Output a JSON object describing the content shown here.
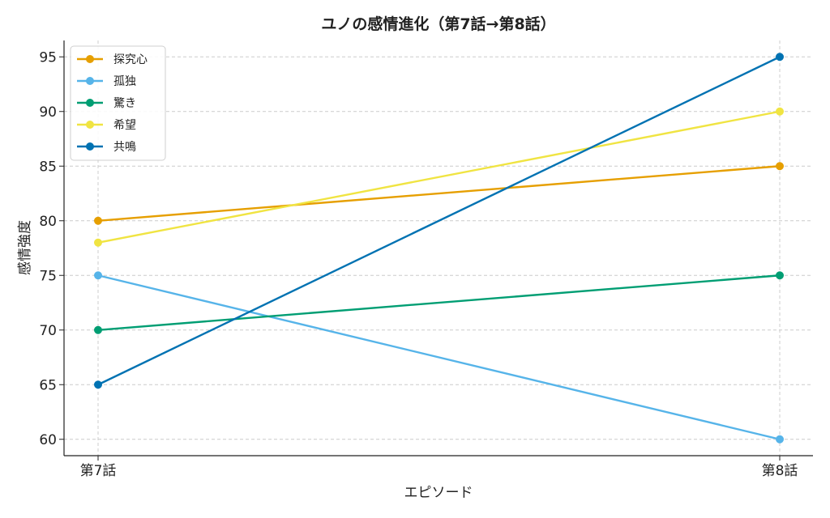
{
  "chart_data": {
    "type": "line",
    "title": "ユノの感情進化（第7話→第8話）",
    "xlabel": "エピソード",
    "ylabel": "感情強度",
    "categories": [
      "第7話",
      "第8話"
    ],
    "ylim": [
      58.5,
      96.5
    ],
    "yticks": [
      60,
      65,
      70,
      75,
      80,
      85,
      90,
      95
    ],
    "grid": true,
    "legend_position": "top-left",
    "series": [
      {
        "name": "探究心",
        "color": "#E69F00",
        "values": [
          80,
          85
        ]
      },
      {
        "name": "孤独",
        "color": "#56B4E9",
        "values": [
          75,
          60
        ]
      },
      {
        "name": "驚き",
        "color": "#009E73",
        "values": [
          70,
          75
        ]
      },
      {
        "name": "希望",
        "color": "#F0E442",
        "values": [
          78,
          90
        ]
      },
      {
        "name": "共鳴",
        "color": "#0072B2",
        "values": [
          65,
          95
        ]
      }
    ]
  }
}
